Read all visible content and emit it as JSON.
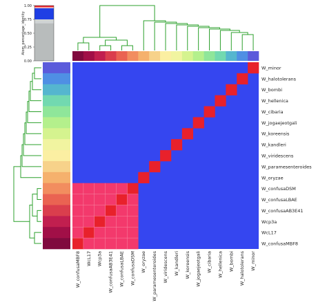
{
  "chart_data": {
    "type": "heatmap",
    "labels": [
      "W_confusaMBF8",
      "WcL17",
      "Wcp3a",
      "W_confusaAB3E41",
      "W_confusaLBAE",
      "W_confusaDSM",
      "W_oryzae",
      "W_paramesenteroides",
      "W_viridescens",
      "W_kandleri",
      "W_koreensis",
      "W_jogaejeotgali",
      "W_cibaria",
      "W_hellenica",
      "W_bombi",
      "W_halotolerans",
      "W_minor"
    ],
    "group_size": 6,
    "values": {
      "diagonal": 1.0,
      "within_group": 0.9,
      "between_groups": 0.7
    },
    "colors": {
      "diagonal": "#e8212b",
      "within_group": "#f3396c",
      "background": "#3546f0",
      "dendrogram": "#2ca02c",
      "row_colors": [
        "#5b5bdb",
        "#4f8fe4",
        "#55b6cf",
        "#72d9b0",
        "#8fe69a",
        "#b4f08c",
        "#d5f38f",
        "#f1f4a0",
        "#fbefa2",
        "#f7d28a",
        "#f5b16d",
        "#f28d5f",
        "#ea6352",
        "#da3e4d",
        "#c11f4f",
        "#a10f47",
        "#800a3e"
      ]
    },
    "legend": {
      "ylabel": "Atom_percentage_identity",
      "ticks": [
        "0.00",
        "0.25",
        "0.50",
        "0.75",
        "1.00"
      ],
      "ylim": [
        0,
        1
      ],
      "blocks": [
        {
          "from": 0.0,
          "to": 0.68,
          "color": "#b8bcbc"
        },
        {
          "from": 0.68,
          "to": 0.75,
          "color": "#cfd3d4"
        },
        {
          "from": 0.75,
          "to": 0.95,
          "color": "#1f3fe4"
        },
        {
          "from": 0.95,
          "to": 0.97,
          "color": "#f4c2c7"
        },
        {
          "from": 0.97,
          "to": 1.0,
          "color": "#e5232b"
        }
      ]
    }
  }
}
